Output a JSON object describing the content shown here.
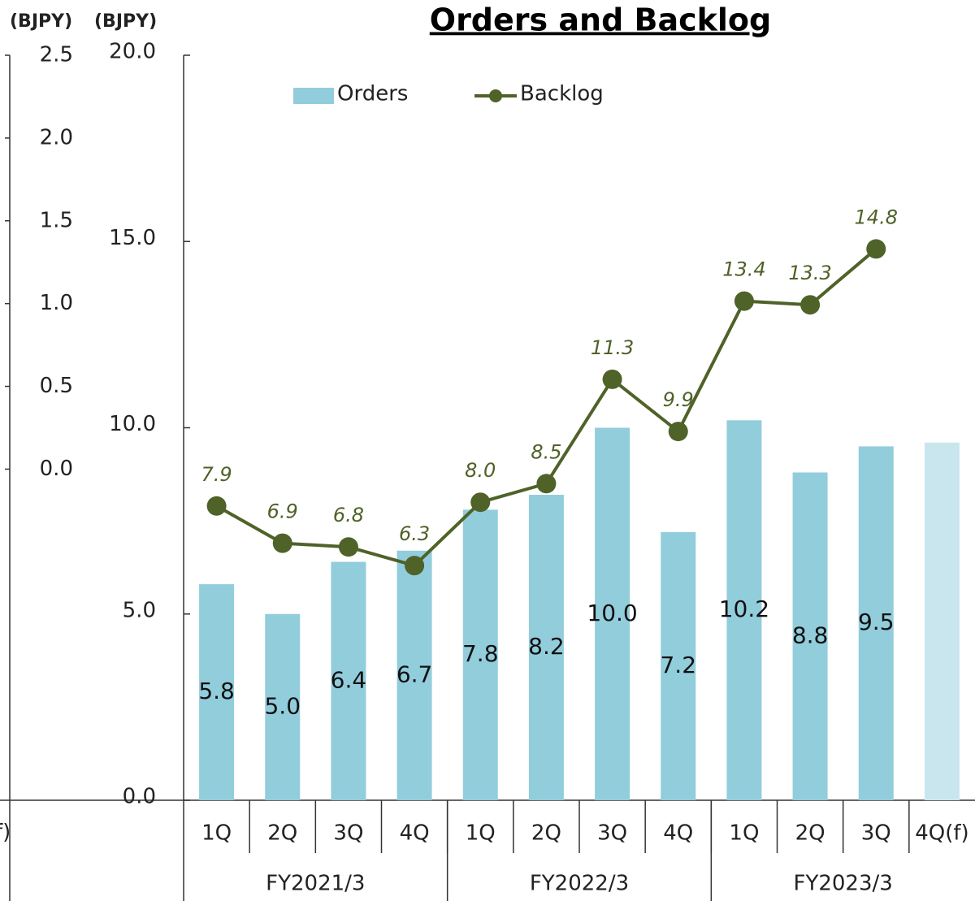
{
  "chart_data": {
    "type": "combo",
    "title": "Orders and Backlog",
    "y_label": "(BJPY)",
    "y2_label": "(BJPY)",
    "cropped_label": "f)",
    "categories": [
      "1Q",
      "2Q",
      "3Q",
      "4Q",
      "1Q",
      "2Q",
      "3Q",
      "4Q",
      "1Q",
      "2Q",
      "3Q",
      "4Q(f)"
    ],
    "groups": [
      "FY2021/3",
      "FY2022/3",
      "FY2023/3"
    ],
    "series": [
      {
        "name": "Orders",
        "type": "bar",
        "color": "#92cddc",
        "colors": [
          "#92cddc",
          "#92cddc",
          "#92cddc",
          "#92cddc",
          "#92cddc",
          "#92cddc",
          "#92cddc",
          "#92cddc",
          "#92cddc",
          "#92cddc",
          "#92cddc",
          "#c9e6ef"
        ],
        "values": [
          5.8,
          5.0,
          6.4,
          6.7,
          7.8,
          8.2,
          10.0,
          7.2,
          10.2,
          8.8,
          9.5,
          9.6
        ],
        "value_labels": [
          "5.8",
          "5.0",
          "6.4",
          "6.7",
          "7.8",
          "8.2",
          "10.0",
          "7.2",
          "10.2",
          "8.8",
          "9.5",
          null
        ]
      },
      {
        "name": "Backlog",
        "type": "line",
        "color": "#4f6228",
        "values": [
          7.9,
          6.9,
          6.8,
          6.3,
          8.0,
          8.5,
          11.3,
          9.9,
          13.4,
          13.3,
          14.8,
          null
        ],
        "value_labels": [
          "7.9",
          "6.9",
          "6.8",
          "6.3",
          "8.0",
          "8.5",
          "11.3",
          "9.9",
          "13.4",
          "13.3",
          "14.8",
          null
        ]
      }
    ],
    "ylim": [
      0,
      20
    ],
    "yticks": [
      {
        "value": 0,
        "label": "0.0"
      },
      {
        "value": 5,
        "label": "5.0"
      },
      {
        "value": 10,
        "label": "10.0"
      },
      {
        "value": 15,
        "label": "15.0"
      },
      {
        "value": 20,
        "label": "20.0"
      }
    ],
    "y2lim": [
      -2,
      2.5
    ],
    "y2ticks": [
      {
        "value": 0,
        "label": "0.0"
      },
      {
        "value": 0.5,
        "label": "0.5"
      },
      {
        "value": 1,
        "label": "1.0"
      },
      {
        "value": 1.5,
        "label": "1.5"
      },
      {
        "value": 2,
        "label": "2.0"
      },
      {
        "value": 2.5,
        "label": "2.5"
      }
    ],
    "grid": false
  }
}
